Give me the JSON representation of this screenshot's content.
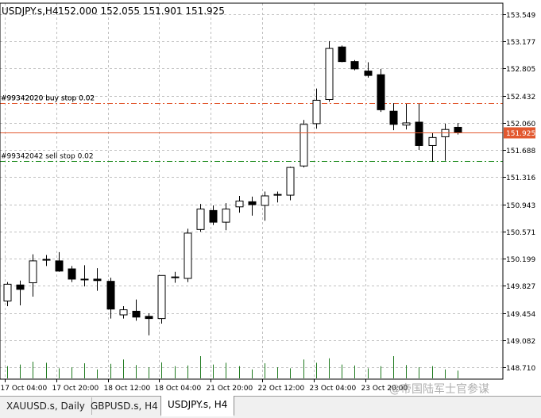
{
  "header": {
    "symbol": "USDJPY.s,H4",
    "ohlc": "152.000 152.055 151.901 151.925"
  },
  "price_marker": {
    "label": "151.925",
    "color": "#e2582f"
  },
  "order_lines": [
    {
      "label": "#99342020 buy stop 0.02",
      "price": 152.33,
      "color": "#e2582f"
    },
    {
      "label": "#99342042 sell stop 0.02",
      "price": 151.54,
      "color": "#1a8a1a"
    }
  ],
  "overlap_label": "#99342020 buy stop 0.02",
  "tabs": [
    {
      "label": "XAUUSD.s, Daily",
      "active": false
    },
    {
      "label": "GBPUSD.s, H4",
      "active": false
    },
    {
      "label": "USDJPY.s, H4",
      "active": true
    }
  ],
  "watermark": "@帝国陆军士官参谋",
  "chart_data": {
    "type": "candlestick",
    "symbol": "USDJPY.s",
    "timeframe": "H4",
    "ylim": [
      148.55,
      153.7
    ],
    "y_ticks": [
      "153.549",
      "153.177",
      "152.805",
      "152.432",
      "152.060",
      "151.688",
      "151.316",
      "150.943",
      "150.571",
      "150.199",
      "149.827",
      "149.454",
      "149.082",
      "148.710"
    ],
    "x_ticks": [
      "17 Oct 04:00",
      "17 Oct 20:00",
      "18 Oct 12:00",
      "18 Oct 04:00",
      "21 Oct 20:00",
      "22 Oct 12:00",
      "23 Oct 04:00",
      "23 Oct 20:00"
    ],
    "candles": [
      {
        "o": 149.62,
        "h": 149.88,
        "l": 149.55,
        "c": 149.85
      },
      {
        "o": 149.84,
        "h": 149.9,
        "l": 149.56,
        "c": 149.78
      },
      {
        "o": 149.87,
        "h": 150.26,
        "l": 149.68,
        "c": 150.17
      },
      {
        "o": 150.19,
        "h": 150.25,
        "l": 150.1,
        "c": 150.19
      },
      {
        "o": 150.17,
        "h": 150.29,
        "l": 150.02,
        "c": 150.03
      },
      {
        "o": 150.06,
        "h": 150.1,
        "l": 149.88,
        "c": 149.92
      },
      {
        "o": 149.92,
        "h": 150.11,
        "l": 149.82,
        "c": 149.92
      },
      {
        "o": 149.92,
        "h": 150.07,
        "l": 149.76,
        "c": 149.9
      },
      {
        "o": 149.89,
        "h": 149.94,
        "l": 149.38,
        "c": 149.51
      },
      {
        "o": 149.43,
        "h": 149.55,
        "l": 149.38,
        "c": 149.5
      },
      {
        "o": 149.48,
        "h": 149.64,
        "l": 149.35,
        "c": 149.4
      },
      {
        "o": 149.41,
        "h": 149.45,
        "l": 149.15,
        "c": 149.38
      },
      {
        "o": 149.38,
        "h": 149.97,
        "l": 149.31,
        "c": 149.97
      },
      {
        "o": 149.94,
        "h": 150.02,
        "l": 149.87,
        "c": 149.95
      },
      {
        "o": 149.93,
        "h": 150.61,
        "l": 149.88,
        "c": 150.55
      },
      {
        "o": 150.6,
        "h": 150.95,
        "l": 150.57,
        "c": 150.88
      },
      {
        "o": 150.86,
        "h": 150.93,
        "l": 150.66,
        "c": 150.7
      },
      {
        "o": 150.7,
        "h": 150.96,
        "l": 150.59,
        "c": 150.88
      },
      {
        "o": 150.91,
        "h": 151.06,
        "l": 150.83,
        "c": 150.99
      },
      {
        "o": 150.98,
        "h": 151.05,
        "l": 150.79,
        "c": 150.94
      },
      {
        "o": 150.93,
        "h": 151.12,
        "l": 150.72,
        "c": 151.06
      },
      {
        "o": 151.08,
        "h": 151.12,
        "l": 150.97,
        "c": 151.08
      },
      {
        "o": 151.07,
        "h": 151.46,
        "l": 151.0,
        "c": 151.45
      },
      {
        "o": 151.47,
        "h": 152.1,
        "l": 151.45,
        "c": 152.04
      },
      {
        "o": 152.05,
        "h": 152.53,
        "l": 151.98,
        "c": 152.37
      },
      {
        "o": 152.38,
        "h": 153.18,
        "l": 152.35,
        "c": 153.08
      },
      {
        "o": 153.1,
        "h": 153.12,
        "l": 152.89,
        "c": 152.9
      },
      {
        "o": 152.9,
        "h": 152.92,
        "l": 152.78,
        "c": 152.8
      },
      {
        "o": 152.77,
        "h": 152.89,
        "l": 152.68,
        "c": 152.71
      },
      {
        "o": 152.72,
        "h": 152.8,
        "l": 152.21,
        "c": 152.24
      },
      {
        "o": 152.22,
        "h": 152.33,
        "l": 151.96,
        "c": 152.04
      },
      {
        "o": 152.03,
        "h": 152.32,
        "l": 151.97,
        "c": 152.06
      },
      {
        "o": 152.07,
        "h": 152.32,
        "l": 151.69,
        "c": 151.75
      },
      {
        "o": 151.75,
        "h": 151.92,
        "l": 151.53,
        "c": 151.86
      },
      {
        "o": 151.87,
        "h": 152.05,
        "l": 151.54,
        "c": 151.97
      },
      {
        "o": 152.0,
        "h": 152.06,
        "l": 151.9,
        "c": 151.93
      }
    ],
    "volumes": [
      0.55,
      0.62,
      0.75,
      0.7,
      0.45,
      0.5,
      0.68,
      0.4,
      0.65,
      0.85,
      0.6,
      0.5,
      0.72,
      0.55,
      0.58,
      1.0,
      0.62,
      0.7,
      0.55,
      0.4,
      0.68,
      0.5,
      0.45,
      0.85,
      0.7,
      0.9,
      0.62,
      0.58,
      0.45,
      0.55,
      1.0,
      0.6,
      0.5,
      0.55,
      0.4,
      0.35
    ],
    "grid": true,
    "colors": {
      "bull_body": "#ffffff",
      "bear_body": "#000000",
      "outline": "#000000",
      "volume": "#1e7a1e",
      "grid": "#c0c0c0",
      "bid_line": "#e2582f"
    }
  }
}
